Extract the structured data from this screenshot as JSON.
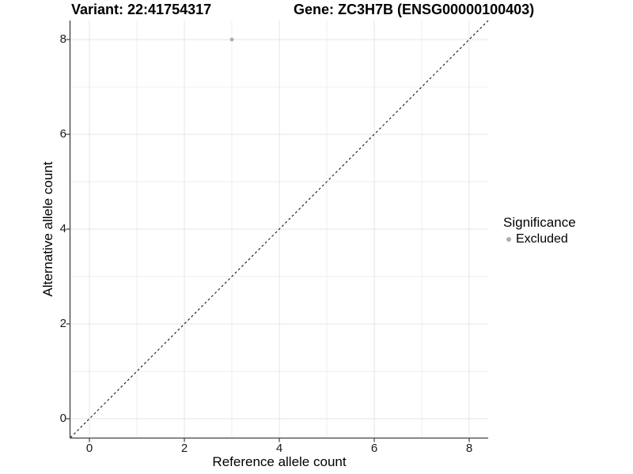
{
  "header": {
    "title_left": "Variant: 22:41754317",
    "title_right": "Gene: ZC3H7B (ENSG00000100403)"
  },
  "legend": {
    "title": "Significance",
    "items": [
      {
        "label": "Excluded",
        "color": "#aeaeae",
        "marker": "circle-dot-icon"
      }
    ]
  },
  "chart_data": {
    "type": "scatter",
    "title": "Variant: 22:41754317 / Gene: ZC3H7B (ENSG00000100403)",
    "xlabel": "Reference allele count",
    "ylabel": "Alternative allele count",
    "xlim": [
      -0.4,
      8.4
    ],
    "ylim": [
      -0.4,
      8.4
    ],
    "x_major_ticks": [
      0,
      2,
      4,
      6,
      8
    ],
    "y_major_ticks": [
      0,
      2,
      4,
      6,
      8
    ],
    "x_minor_ticks": [
      1,
      3,
      5,
      7
    ],
    "y_minor_ticks": [
      1,
      3,
      5,
      7
    ],
    "grid": true,
    "legend_position": "right",
    "series": [
      {
        "name": "Excluded",
        "color": "#aeaeae",
        "points": [
          {
            "x": 3,
            "y": 8
          }
        ]
      }
    ],
    "reference_line": {
      "kind": "identity",
      "from": "panel-min",
      "to": "panel-max",
      "style": "dashed",
      "color": "#000000"
    },
    "colors": {
      "major_grid": "#e4e4e4",
      "minor_grid": "#efefef",
      "axis_line": "#404040",
      "background": "#ffffff"
    }
  }
}
